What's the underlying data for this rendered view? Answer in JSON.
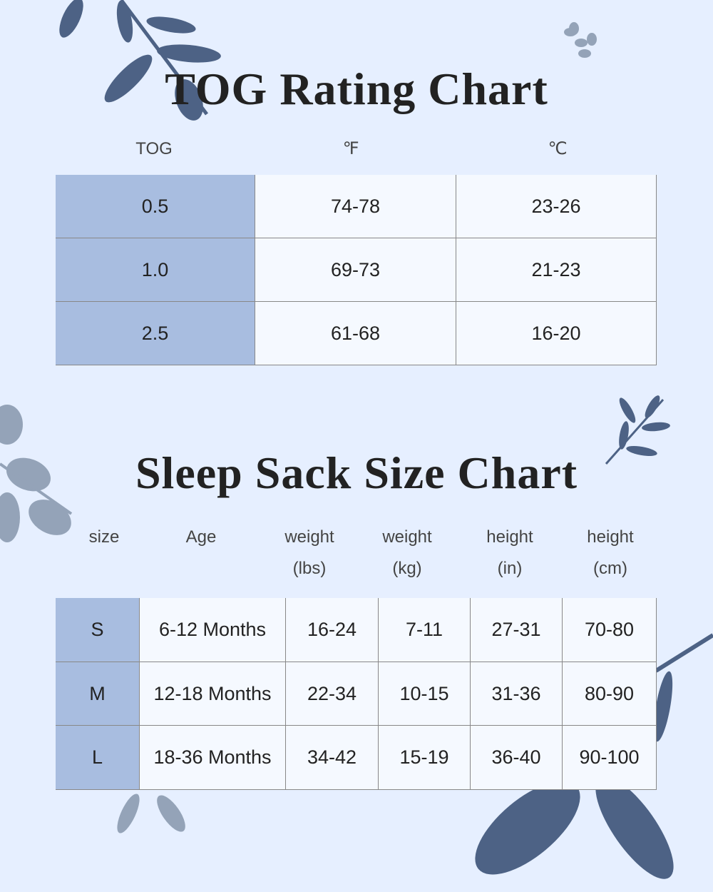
{
  "tog_chart": {
    "title": "TOG Rating Chart",
    "headers": [
      "TOG",
      "℉",
      "℃"
    ],
    "rows": [
      [
        "0.5",
        "74-78",
        "23-26"
      ],
      [
        "1.0",
        "69-73",
        "21-23"
      ],
      [
        "2.5",
        "61-68",
        "16-20"
      ]
    ]
  },
  "size_chart": {
    "title": "Sleep Sack Size Chart",
    "headers": [
      [
        "size"
      ],
      [
        "Age"
      ],
      [
        "weight",
        "(lbs)"
      ],
      [
        "weight",
        "(kg)"
      ],
      [
        "height",
        "(in)"
      ],
      [
        "height",
        "(cm)"
      ]
    ],
    "rows": [
      [
        "S",
        "6-12 Months",
        "16-24",
        "7-11",
        "27-31",
        "70-80"
      ],
      [
        "M",
        "12-18 Months",
        "22-34",
        "10-15",
        "31-36",
        "80-90"
      ],
      [
        "L",
        "18-36 Months",
        "34-42",
        "15-19",
        "36-40",
        "90-100"
      ]
    ]
  }
}
